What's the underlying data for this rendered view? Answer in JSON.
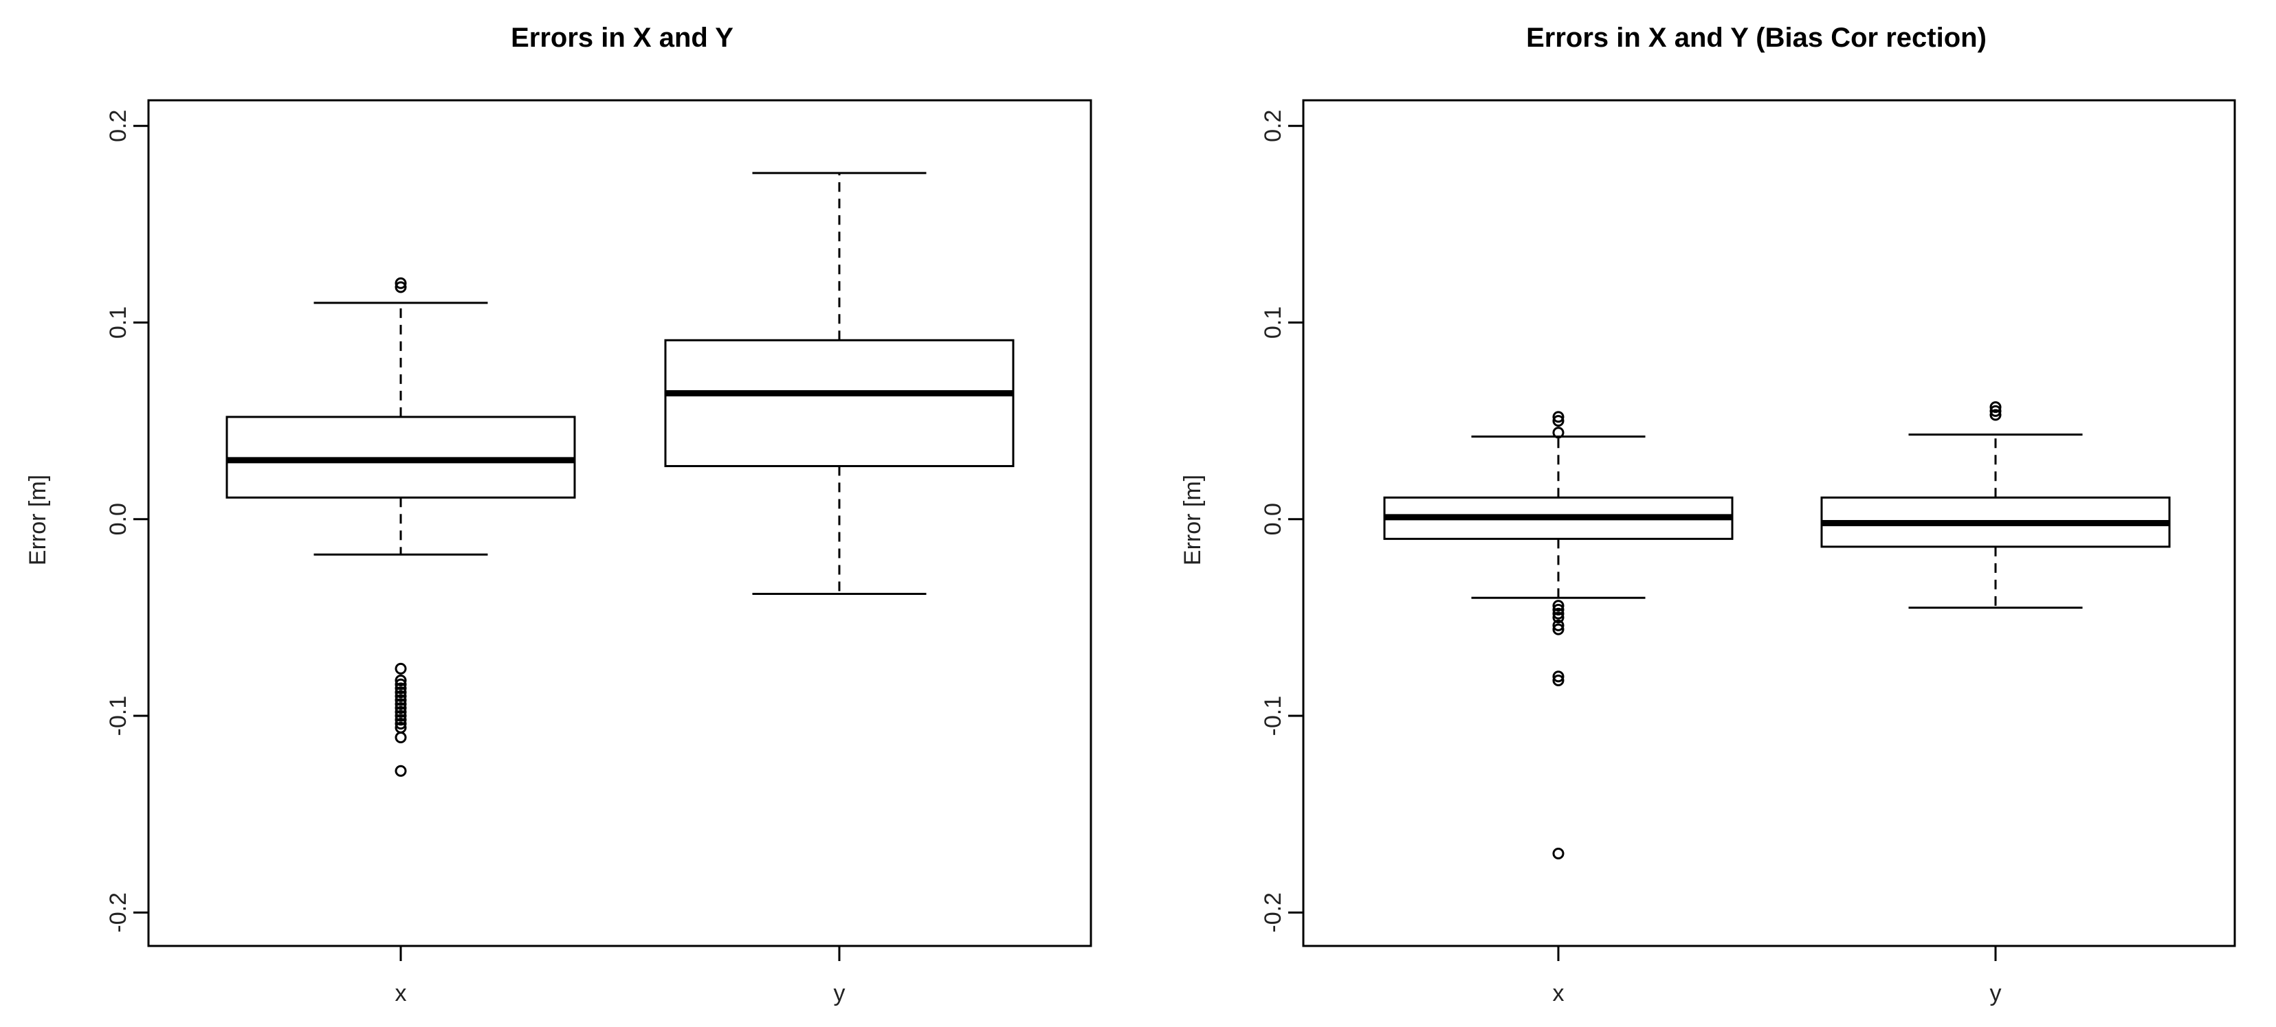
{
  "chart_data": [
    {
      "type": "boxplot",
      "title": "Errors in X and Y",
      "xlabel": "",
      "ylabel": "Error [m]",
      "ylim": [
        -0.217,
        0.213
      ],
      "yticks": [
        -0.2,
        -0.1,
        0.0,
        0.1,
        0.2
      ],
      "ytick_labels": [
        "-0.2",
        "-0.1",
        "0.0",
        "0.1",
        "0.2"
      ],
      "grid": false,
      "categories": [
        "x",
        "y"
      ],
      "boxes": [
        {
          "category": "x",
          "whisker_low": -0.018,
          "q1": 0.011,
          "median": 0.03,
          "q3": 0.052,
          "whisker_high": 0.11,
          "outliers": [
            0.118,
            0.12,
            -0.076,
            -0.082,
            -0.084,
            -0.086,
            -0.088,
            -0.09,
            -0.092,
            -0.094,
            -0.096,
            -0.098,
            -0.1,
            -0.102,
            -0.104,
            -0.106,
            -0.111,
            -0.128
          ]
        },
        {
          "category": "y",
          "whisker_low": -0.038,
          "q1": 0.027,
          "median": 0.064,
          "q3": 0.091,
          "whisker_high": 0.176,
          "outliers": []
        }
      ]
    },
    {
      "type": "boxplot",
      "title": "Errors in X and Y (Bias Cor rection)",
      "xlabel": "",
      "ylabel": "Error [m]",
      "ylim": [
        -0.217,
        0.213
      ],
      "yticks": [
        -0.2,
        -0.1,
        0.0,
        0.1,
        0.2
      ],
      "ytick_labels": [
        "-0.2",
        "-0.1",
        "0.0",
        "0.1",
        "0.2"
      ],
      "grid": false,
      "categories": [
        "x",
        "y"
      ],
      "boxes": [
        {
          "category": "x",
          "whisker_low": -0.04,
          "q1": -0.01,
          "median": 0.001,
          "q3": 0.011,
          "whisker_high": 0.042,
          "outliers": [
            0.044,
            0.05,
            0.052,
            -0.044,
            -0.046,
            -0.048,
            -0.05,
            -0.054,
            -0.056,
            -0.08,
            -0.082,
            -0.17
          ]
        },
        {
          "category": "y",
          "whisker_low": -0.045,
          "q1": -0.014,
          "median": -0.002,
          "q3": 0.011,
          "whisker_high": 0.043,
          "outliers": [
            0.053,
            0.055,
            0.057
          ]
        }
      ]
    }
  ]
}
